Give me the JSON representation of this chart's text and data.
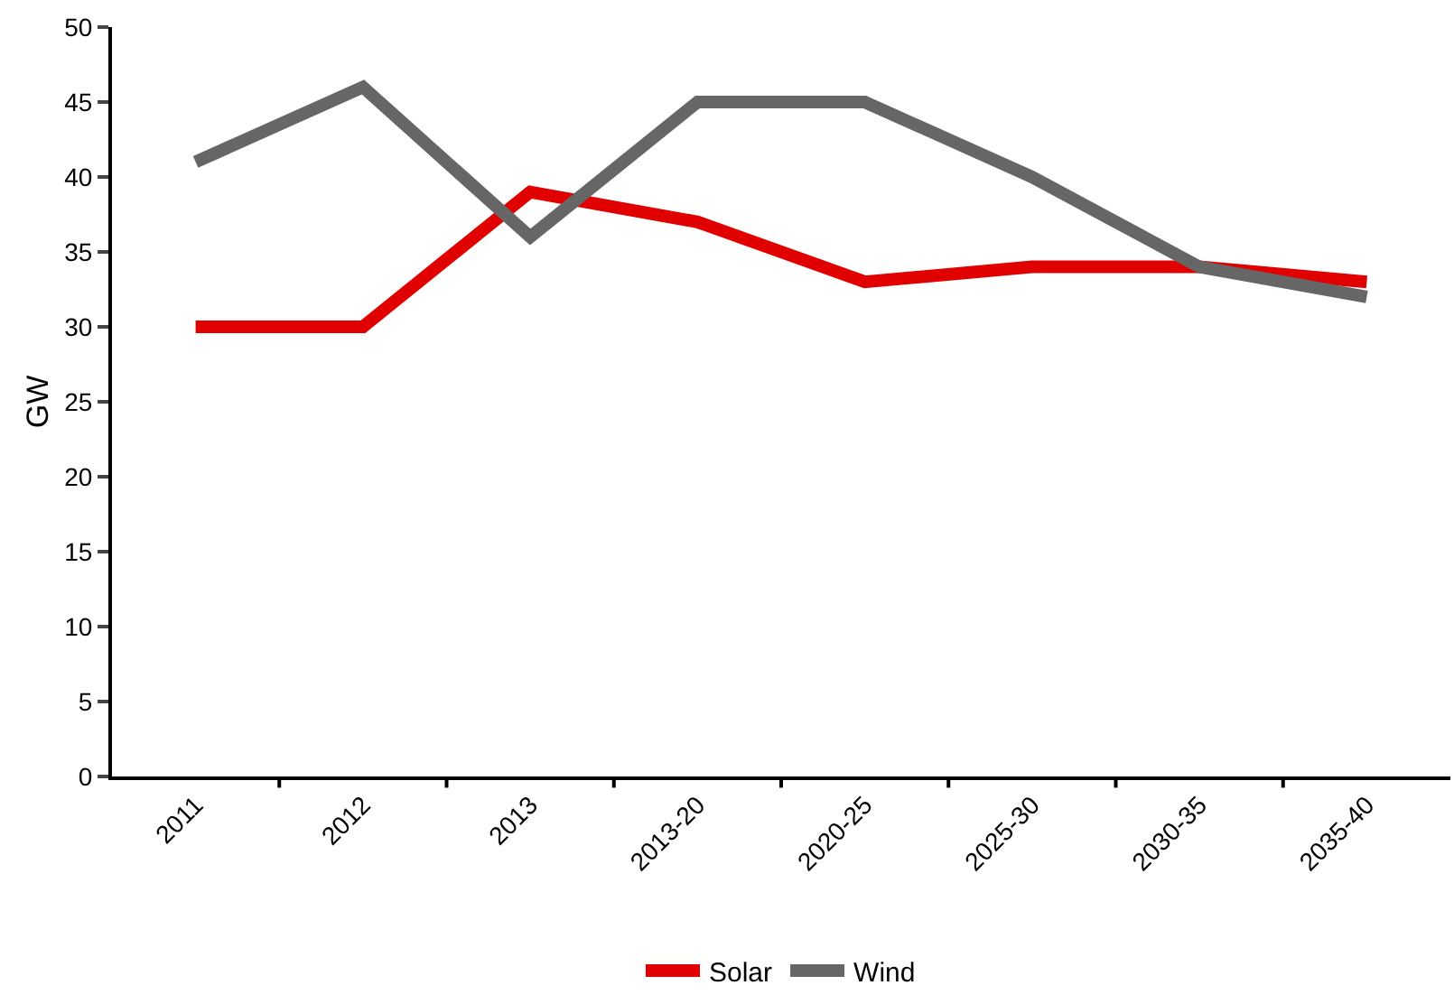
{
  "chart_data": {
    "type": "line",
    "ylabel": "GW",
    "categories": [
      "2011",
      "2012",
      "2013",
      "2013-20",
      "2020-25",
      "2025-30",
      "2030-35",
      "2035-40"
    ],
    "series": [
      {
        "name": "Solar",
        "color": "#e00000",
        "values": [
          30,
          30,
          39,
          37,
          33,
          34,
          34,
          33
        ]
      },
      {
        "name": "Wind",
        "color": "#666666",
        "values": [
          41,
          46,
          36,
          45,
          45,
          40,
          34,
          32
        ]
      }
    ],
    "ylim": [
      0,
      50
    ],
    "yticks": [
      0,
      5,
      10,
      15,
      20,
      25,
      30,
      35,
      40,
      45,
      50
    ],
    "legend": "bottom",
    "marker": "none",
    "line_style": "solid"
  }
}
